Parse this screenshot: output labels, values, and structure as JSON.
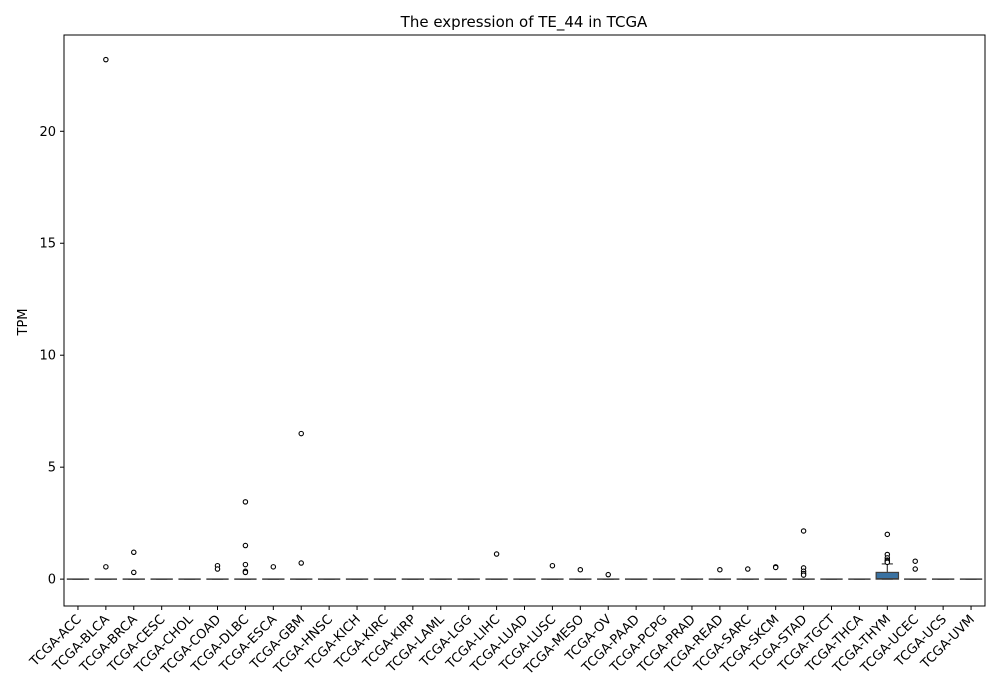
{
  "chart_data": {
    "type": "box",
    "title": "The expression of TE_44 in TCGA",
    "xlabel": "",
    "ylabel": "TPM",
    "ylim": [
      -1.2,
      24.3
    ],
    "yticks": [
      0,
      5,
      10,
      15,
      20
    ],
    "grid": false,
    "legend": "none",
    "box_color": "#3a72a2",
    "categories": [
      "TCGA-ACC",
      "TCGA-BLCA",
      "TCGA-BRCA",
      "TCGA-CESC",
      "TCGA-CHOL",
      "TCGA-COAD",
      "TCGA-DLBC",
      "TCGA-ESCA",
      "TCGA-GBM",
      "TCGA-HNSC",
      "TCGA-KICH",
      "TCGA-KIRC",
      "TCGA-KIRP",
      "TCGA-LAML",
      "TCGA-LGG",
      "TCGA-LIHC",
      "TCGA-LUAD",
      "TCGA-LUSC",
      "TCGA-MESO",
      "TCGA-OV",
      "TCGA-PAAD",
      "TCGA-PCPG",
      "TCGA-PRAD",
      "TCGA-READ",
      "TCGA-SARC",
      "TCGA-SKCM",
      "TCGA-STAD",
      "TCGA-TGCT",
      "TCGA-THCA",
      "TCGA-THYM",
      "TCGA-UCEC",
      "TCGA-UCS",
      "TCGA-UVM"
    ],
    "boxes": [
      {
        "q1": 0,
        "median": 0,
        "q3": 0,
        "whisker_low": 0,
        "whisker_high": 0,
        "outliers": []
      },
      {
        "q1": 0,
        "median": 0,
        "q3": 0,
        "whisker_low": 0,
        "whisker_high": 0,
        "outliers": [
          23.2,
          0.55
        ]
      },
      {
        "q1": 0,
        "median": 0,
        "q3": 0,
        "whisker_low": 0,
        "whisker_high": 0,
        "outliers": [
          1.2,
          0.3
        ]
      },
      {
        "q1": 0,
        "median": 0,
        "q3": 0,
        "whisker_low": 0,
        "whisker_high": 0,
        "outliers": []
      },
      {
        "q1": 0,
        "median": 0,
        "q3": 0,
        "whisker_low": 0,
        "whisker_high": 0,
        "outliers": []
      },
      {
        "q1": 0,
        "median": 0,
        "q3": 0,
        "whisker_low": 0,
        "whisker_high": 0,
        "outliers": [
          0.6,
          0.45
        ]
      },
      {
        "q1": 0,
        "median": 0,
        "q3": 0,
        "whisker_low": 0,
        "whisker_high": 0,
        "outliers": [
          3.45,
          1.5,
          0.65,
          0.35,
          0.3
        ]
      },
      {
        "q1": 0,
        "median": 0,
        "q3": 0,
        "whisker_low": 0,
        "whisker_high": 0,
        "outliers": [
          0.55
        ]
      },
      {
        "q1": 0,
        "median": 0,
        "q3": 0,
        "whisker_low": 0,
        "whisker_high": 0,
        "outliers": [
          6.5,
          0.72
        ]
      },
      {
        "q1": 0,
        "median": 0,
        "q3": 0,
        "whisker_low": 0,
        "whisker_high": 0,
        "outliers": []
      },
      {
        "q1": 0,
        "median": 0,
        "q3": 0,
        "whisker_low": 0,
        "whisker_high": 0,
        "outliers": []
      },
      {
        "q1": 0,
        "median": 0,
        "q3": 0,
        "whisker_low": 0,
        "whisker_high": 0,
        "outliers": []
      },
      {
        "q1": 0,
        "median": 0,
        "q3": 0,
        "whisker_low": 0,
        "whisker_high": 0,
        "outliers": []
      },
      {
        "q1": 0,
        "median": 0,
        "q3": 0,
        "whisker_low": 0,
        "whisker_high": 0,
        "outliers": []
      },
      {
        "q1": 0,
        "median": 0,
        "q3": 0,
        "whisker_low": 0,
        "whisker_high": 0,
        "outliers": []
      },
      {
        "q1": 0,
        "median": 0,
        "q3": 0,
        "whisker_low": 0,
        "whisker_high": 0,
        "outliers": [
          1.12
        ]
      },
      {
        "q1": 0,
        "median": 0,
        "q3": 0,
        "whisker_low": 0,
        "whisker_high": 0,
        "outliers": []
      },
      {
        "q1": 0,
        "median": 0,
        "q3": 0,
        "whisker_low": 0,
        "whisker_high": 0,
        "outliers": [
          0.6
        ]
      },
      {
        "q1": 0,
        "median": 0,
        "q3": 0,
        "whisker_low": 0,
        "whisker_high": 0,
        "outliers": [
          0.42
        ]
      },
      {
        "q1": 0,
        "median": 0,
        "q3": 0,
        "whisker_low": 0,
        "whisker_high": 0,
        "outliers": [
          0.2
        ]
      },
      {
        "q1": 0,
        "median": 0,
        "q3": 0,
        "whisker_low": 0,
        "whisker_high": 0,
        "outliers": []
      },
      {
        "q1": 0,
        "median": 0,
        "q3": 0,
        "whisker_low": 0,
        "whisker_high": 0,
        "outliers": []
      },
      {
        "q1": 0,
        "median": 0,
        "q3": 0,
        "whisker_low": 0,
        "whisker_high": 0,
        "outliers": []
      },
      {
        "q1": 0,
        "median": 0,
        "q3": 0,
        "whisker_low": 0,
        "whisker_high": 0,
        "outliers": [
          0.42
        ]
      },
      {
        "q1": 0,
        "median": 0,
        "q3": 0,
        "whisker_low": 0,
        "whisker_high": 0,
        "outliers": [
          0.45
        ]
      },
      {
        "q1": 0,
        "median": 0,
        "q3": 0,
        "whisker_low": 0,
        "whisker_high": 0,
        "outliers": [
          0.55,
          0.52
        ]
      },
      {
        "q1": 0,
        "median": 0,
        "q3": 0,
        "whisker_low": 0,
        "whisker_high": 0,
        "outliers": [
          2.15,
          0.5,
          0.35,
          0.25,
          0.18
        ]
      },
      {
        "q1": 0,
        "median": 0,
        "q3": 0,
        "whisker_low": 0,
        "whisker_high": 0,
        "outliers": []
      },
      {
        "q1": 0,
        "median": 0,
        "q3": 0,
        "whisker_low": 0,
        "whisker_high": 0,
        "outliers": []
      },
      {
        "q1": 0,
        "median": 0.02,
        "q3": 0.3,
        "whisker_low": 0,
        "whisker_high": 0.68,
        "outliers": [
          2.0,
          1.1,
          0.95,
          0.85,
          0.8,
          0.75
        ]
      },
      {
        "q1": 0,
        "median": 0,
        "q3": 0,
        "whisker_low": 0,
        "whisker_high": 0,
        "outliers": [
          0.8,
          0.45
        ]
      },
      {
        "q1": 0,
        "median": 0,
        "q3": 0,
        "whisker_low": 0,
        "whisker_high": 0,
        "outliers": []
      },
      {
        "q1": 0,
        "median": 0,
        "q3": 0,
        "whisker_low": 0,
        "whisker_high": 0,
        "outliers": []
      }
    ]
  }
}
